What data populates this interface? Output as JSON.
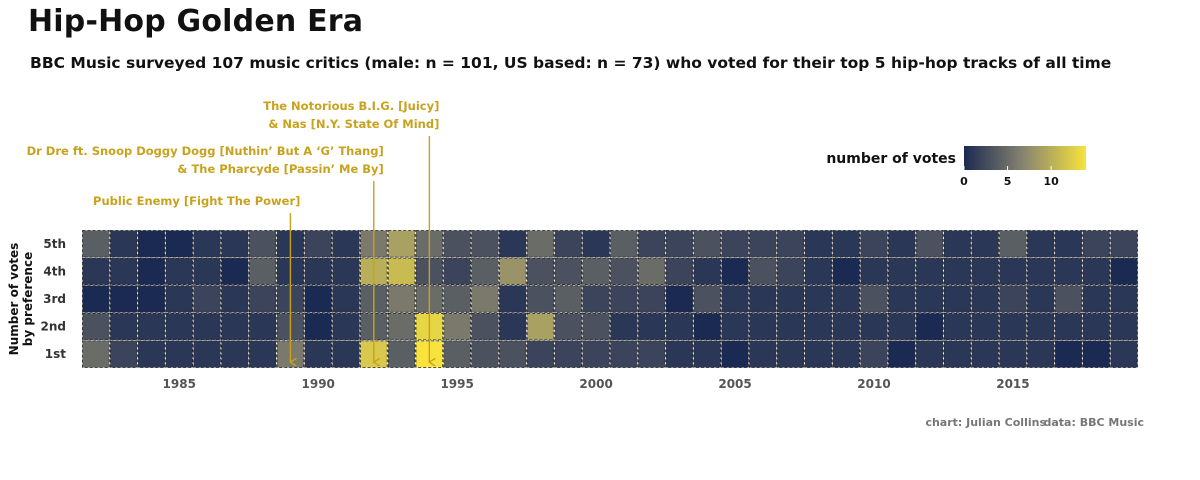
{
  "title": "Hip-Hop Golden Era",
  "subtitle": "BBC Music surveyed 107 music critics (male: n = 101, US based: n = 73) who voted for their top 5 hip-hop tracks of all time",
  "caption": {
    "chart": "chart: Julian Collins",
    "data": "data: BBC Music"
  },
  "legend": {
    "title": "number of votes",
    "ticks": [
      "0",
      "5",
      "10"
    ],
    "min": 0,
    "max": 14,
    "position": "top-right"
  },
  "colors": {
    "low": "#1b2a52",
    "mid": "#8a8670",
    "high": "#f7e33c",
    "annotation": "#c9a21d"
  },
  "chart_data": {
    "type": "heatmap",
    "xlabel": "",
    "ylabel_lines": [
      "Number of votes",
      "by preference"
    ],
    "x_ticks": [
      "1985",
      "1990",
      "1995",
      "2000",
      "2005",
      "2010",
      "2015"
    ],
    "x_tick_values": [
      1985,
      1990,
      1995,
      2000,
      2005,
      2010,
      2015
    ],
    "years": [
      1982,
      1983,
      1984,
      1985,
      1986,
      1987,
      1988,
      1989,
      1990,
      1991,
      1992,
      1993,
      1994,
      1995,
      1996,
      1997,
      1998,
      1999,
      2000,
      2001,
      2002,
      2003,
      2004,
      2005,
      2006,
      2007,
      2008,
      2009,
      2010,
      2011,
      2012,
      2013,
      2014,
      2015,
      2016,
      2017,
      2018,
      2019
    ],
    "rows": [
      "5th",
      "4th",
      "3rd",
      "2nd",
      "1st"
    ],
    "values": [
      [
        4,
        1,
        0,
        0,
        1,
        1,
        3,
        1,
        2,
        1,
        6,
        9,
        5,
        3,
        3,
        1,
        5,
        2,
        1,
        4,
        2,
        2,
        3,
        2,
        2,
        2,
        1,
        1,
        2,
        1,
        3,
        1,
        1,
        4,
        1,
        1,
        2,
        2
      ],
      [
        1,
        1,
        0,
        1,
        1,
        0,
        4,
        1,
        1,
        1,
        10,
        11,
        3,
        2,
        4,
        8,
        3,
        3,
        4,
        3,
        5,
        2,
        1,
        0,
        3,
        2,
        1,
        0,
        1,
        1,
        1,
        1,
        1,
        1,
        1,
        1,
        1,
        0
      ],
      [
        0,
        0,
        0,
        1,
        2,
        1,
        2,
        2,
        0,
        1,
        4,
        6,
        5,
        4,
        6,
        1,
        3,
        4,
        2,
        2,
        2,
        0,
        3,
        1,
        1,
        1,
        1,
        1,
        3,
        1,
        1,
        1,
        1,
        2,
        1,
        3,
        1,
        1
      ],
      [
        3,
        1,
        1,
        1,
        1,
        1,
        1,
        3,
        0,
        1,
        4,
        5,
        13,
        6,
        3,
        1,
        9,
        3,
        3,
        1,
        1,
        1,
        0,
        1,
        1,
        1,
        1,
        1,
        1,
        1,
        0,
        1,
        1,
        1,
        1,
        1,
        1,
        1
      ],
      [
        5,
        2,
        1,
        1,
        1,
        1,
        1,
        6,
        1,
        1,
        12,
        4,
        14,
        4,
        3,
        3,
        2,
        2,
        2,
        2,
        2,
        1,
        1,
        0,
        1,
        1,
        1,
        1,
        2,
        0,
        1,
        1,
        1,
        1,
        1,
        0,
        0,
        1
      ]
    ],
    "annotations": [
      {
        "lines": [
          "Public Enemy [Fight The Power]"
        ],
        "year": 1989,
        "row": "1st"
      },
      {
        "lines": [
          "Dr Dre ft. Snoop Doggy Dogg [Nuthin’ But A ‘G’ Thang]",
          "& The Pharcyde [Passin’ Me By]"
        ],
        "year": 1992,
        "row": "1st"
      },
      {
        "lines": [
          "The Notorious B.I.G. [Juicy]",
          "& Nas [N.Y. State Of Mind]"
        ],
        "year": 1994,
        "row": "1st"
      }
    ]
  }
}
